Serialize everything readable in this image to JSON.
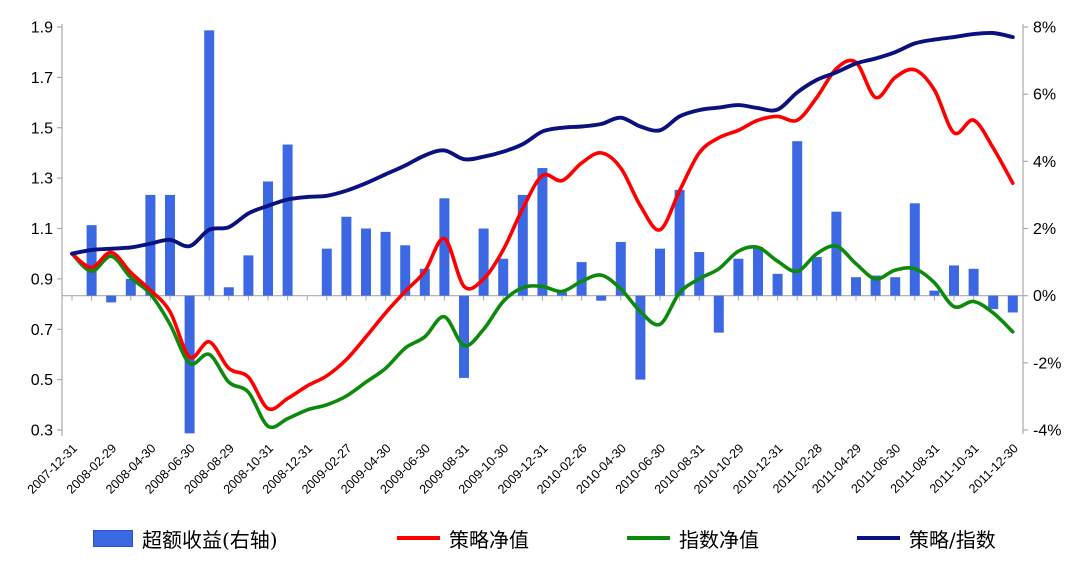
{
  "chart_data": {
    "type": "bar+line",
    "title": "",
    "x_months": [
      "2007-12",
      "2008-01",
      "2008-02",
      "2008-03",
      "2008-04",
      "2008-05",
      "2008-06",
      "2008-07",
      "2008-08",
      "2008-09",
      "2008-10",
      "2008-11",
      "2008-12",
      "2009-01",
      "2009-02",
      "2009-03",
      "2009-04",
      "2009-05",
      "2009-06",
      "2009-07",
      "2009-08",
      "2009-09",
      "2009-10",
      "2009-11",
      "2009-12",
      "2010-01",
      "2010-02",
      "2010-03",
      "2010-04",
      "2010-05",
      "2010-06",
      "2010-07",
      "2010-08",
      "2010-09",
      "2010-10",
      "2010-11",
      "2010-12",
      "2011-01",
      "2011-02",
      "2011-03",
      "2011-04",
      "2011-05",
      "2011-06",
      "2011-07",
      "2011-08",
      "2011-09",
      "2011-10",
      "2011-11",
      "2011-12"
    ],
    "x_tick_labels": [
      "2007-12-31",
      "2008-02-29",
      "2008-04-30",
      "2008-06-30",
      "2008-08-29",
      "2008-10-31",
      "2008-12-31",
      "2009-02-27",
      "2009-04-30",
      "2009-06-30",
      "2009-08-31",
      "2009-10-30",
      "2009-12-31",
      "2010-02-26",
      "2010-04-30",
      "2010-06-30",
      "2010-08-31",
      "2010-10-29",
      "2010-12-31",
      "2011-02-28",
      "2011-04-29",
      "2011-06-30",
      "2011-08-31",
      "2011-10-31",
      "2011-12-30"
    ],
    "left_axis": {
      "min": 0.3,
      "max": 1.9,
      "ticks": [
        "1.9",
        "1.7",
        "1.5",
        "1.3",
        "1.1",
        "0.9",
        "0.7",
        "0.5",
        "0.3"
      ]
    },
    "right_axis": {
      "min": -4,
      "max": 8,
      "unit": "%",
      "ticks": [
        "8%",
        "6%",
        "4%",
        "2%",
        "0%",
        "-2%",
        "-4%"
      ]
    },
    "grid": "zero-baseline-only",
    "legend_position": "bottom",
    "series": [
      {
        "name": "超额收益(右轴)",
        "type": "bar",
        "axis": "right",
        "unit": "%",
        "color": "#3D68E4",
        "values": [
          null,
          2.1,
          -0.2,
          0.5,
          3.0,
          3.0,
          -4.1,
          7.9,
          0.25,
          1.2,
          3.4,
          4.5,
          0.0,
          1.4,
          2.35,
          2.0,
          1.9,
          1.5,
          0.8,
          2.9,
          -2.45,
          2.0,
          1.1,
          3.0,
          3.8,
          0.1,
          1.0,
          -0.15,
          1.6,
          -2.5,
          1.4,
          3.15,
          1.3,
          -1.1,
          1.1,
          1.45,
          0.65,
          4.6,
          1.15,
          2.5,
          0.55,
          0.6,
          0.55,
          2.75,
          0.15,
          0.9,
          0.8,
          -0.4,
          -0.5
        ]
      },
      {
        "name": "策略净值",
        "type": "line",
        "axis": "left",
        "color": "#FF0000",
        "values": [
          1.0,
          0.945,
          1.005,
          0.925,
          0.855,
          0.77,
          0.59,
          0.65,
          0.545,
          0.51,
          0.385,
          0.425,
          0.475,
          0.515,
          0.58,
          0.67,
          0.765,
          0.85,
          0.93,
          1.06,
          0.87,
          0.9,
          1.015,
          1.18,
          1.31,
          1.29,
          1.36,
          1.4,
          1.34,
          1.19,
          1.095,
          1.25,
          1.4,
          1.46,
          1.49,
          1.53,
          1.545,
          1.53,
          1.62,
          1.735,
          1.76,
          1.62,
          1.7,
          1.73,
          1.65,
          1.48,
          1.53,
          1.42,
          1.28
        ]
      },
      {
        "name": "指数净值",
        "type": "line",
        "axis": "left",
        "color": "#0B8A0B",
        "values": [
          1.0,
          0.93,
          0.99,
          0.905,
          0.84,
          0.72,
          0.565,
          0.6,
          0.49,
          0.45,
          0.315,
          0.345,
          0.38,
          0.4,
          0.435,
          0.49,
          0.545,
          0.625,
          0.67,
          0.75,
          0.635,
          0.7,
          0.81,
          0.865,
          0.87,
          0.85,
          0.89,
          0.915,
          0.86,
          0.77,
          0.72,
          0.845,
          0.9,
          0.94,
          1.01,
          1.025,
          0.97,
          0.93,
          1.0,
          1.03,
          0.96,
          0.9,
          0.935,
          0.94,
          0.885,
          0.79,
          0.81,
          0.765,
          0.69
        ]
      },
      {
        "name": "策略/指数",
        "type": "line",
        "axis": "left",
        "color": "#0A1280",
        "values": [
          1.0,
          1.015,
          1.02,
          1.025,
          1.04,
          1.055,
          1.03,
          1.095,
          1.105,
          1.16,
          1.19,
          1.215,
          1.225,
          1.23,
          1.25,
          1.28,
          1.315,
          1.35,
          1.39,
          1.41,
          1.375,
          1.385,
          1.405,
          1.435,
          1.485,
          1.5,
          1.505,
          1.515,
          1.54,
          1.505,
          1.49,
          1.545,
          1.57,
          1.58,
          1.59,
          1.578,
          1.572,
          1.64,
          1.69,
          1.72,
          1.755,
          1.775,
          1.8,
          1.835,
          1.85,
          1.86,
          1.872,
          1.876,
          1.86
        ]
      }
    ],
    "colors": {
      "axis_line": "#ABABAB",
      "tick": "#ABABAB",
      "baseline": "#ABABAB",
      "text": "#000000"
    }
  }
}
